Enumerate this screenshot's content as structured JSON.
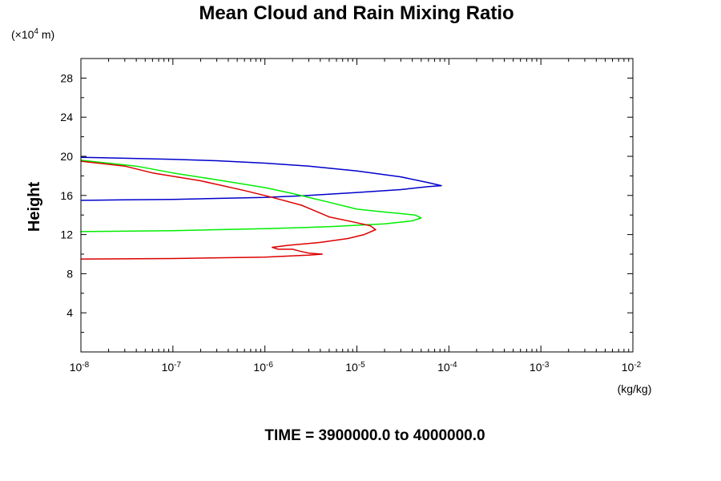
{
  "chart_data": {
    "type": "line",
    "title": "Mean Cloud and Rain Mixing Ratio",
    "ylabel": "Height",
    "yscale_note": {
      "prefix": "(×10",
      "exp": "4",
      "suffix": " m)"
    },
    "xunits": "(kg/kg)",
    "time_label": "TIME = 3900000.0 to 4000000.0",
    "xscale": "log",
    "xlim": [
      1e-08,
      0.01
    ],
    "ylim": [
      0,
      30
    ],
    "yticks": [
      "4",
      "8",
      "12",
      "16",
      "20",
      "24",
      "28"
    ],
    "xticks": [
      {
        "base": "10",
        "exp": "-8"
      },
      {
        "base": "10",
        "exp": "-7"
      },
      {
        "base": "10",
        "exp": "-6"
      },
      {
        "base": "10",
        "exp": "-5"
      },
      {
        "base": "10",
        "exp": "-4"
      },
      {
        "base": "10",
        "exp": "-3"
      },
      {
        "base": "10",
        "exp": "-2"
      }
    ],
    "grid": false,
    "series": [
      {
        "color": "#0000cc",
        "points": [
          [
            1e-08,
            15.5
          ],
          [
            3e-08,
            15.55
          ],
          [
            1e-07,
            15.6
          ],
          [
            3e-07,
            15.7
          ],
          [
            1e-06,
            15.8
          ],
          [
            3e-06,
            16.0
          ],
          [
            1e-05,
            16.3
          ],
          [
            3e-05,
            16.6
          ],
          [
            6e-05,
            16.9
          ],
          [
            8.3e-05,
            17.0
          ],
          [
            6e-05,
            17.3
          ],
          [
            3e-05,
            17.9
          ],
          [
            1e-05,
            18.5
          ],
          [
            3e-06,
            19.0
          ],
          [
            1e-06,
            19.3
          ],
          [
            3e-07,
            19.55
          ],
          [
            1e-07,
            19.7
          ],
          [
            3e-08,
            19.8
          ],
          [
            1e-08,
            19.9
          ]
        ]
      },
      {
        "color": "#00ee00",
        "points": [
          [
            1e-08,
            12.3
          ],
          [
            1e-07,
            12.4
          ],
          [
            1e-06,
            12.6
          ],
          [
            5e-06,
            12.8
          ],
          [
            2e-05,
            13.1
          ],
          [
            4e-05,
            13.4
          ],
          [
            5e-05,
            13.7
          ],
          [
            4.3e-05,
            14.0
          ],
          [
            2e-05,
            14.3
          ],
          [
            1e-05,
            14.6
          ],
          [
            5e-06,
            15.3
          ],
          [
            2e-06,
            16.2
          ],
          [
            1e-06,
            16.8
          ],
          [
            3e-07,
            17.6
          ],
          [
            1e-07,
            18.3
          ],
          [
            4e-08,
            19.0
          ],
          [
            2e-08,
            19.3
          ],
          [
            1e-08,
            19.6
          ]
        ]
      },
      {
        "color": "#dd0000",
        "points": [
          [
            1e-08,
            9.5
          ],
          [
            1e-07,
            9.55
          ],
          [
            1e-06,
            9.7
          ],
          [
            3e-06,
            9.9
          ],
          [
            4.2e-06,
            10.0
          ],
          [
            3e-06,
            10.1
          ],
          [
            2.4e-06,
            10.3
          ],
          [
            2e-06,
            10.5
          ],
          [
            1.4e-06,
            10.5
          ],
          [
            1.2e-06,
            10.7
          ],
          [
            1.8e-06,
            10.9
          ],
          [
            4e-06,
            11.2
          ],
          [
            8e-06,
            11.6
          ],
          [
            1.2e-05,
            12.0
          ],
          [
            1.6e-05,
            12.5
          ],
          [
            1.4e-05,
            12.9
          ],
          [
            9e-06,
            13.3
          ],
          [
            5e-06,
            13.8
          ],
          [
            4e-06,
            14.2
          ],
          [
            2.5e-06,
            15.0
          ],
          [
            1.2e-06,
            15.8
          ],
          [
            6e-07,
            16.5
          ],
          [
            2e-07,
            17.5
          ],
          [
            6e-08,
            18.3
          ],
          [
            3e-08,
            19.0
          ],
          [
            1e-08,
            19.5
          ]
        ]
      }
    ]
  }
}
